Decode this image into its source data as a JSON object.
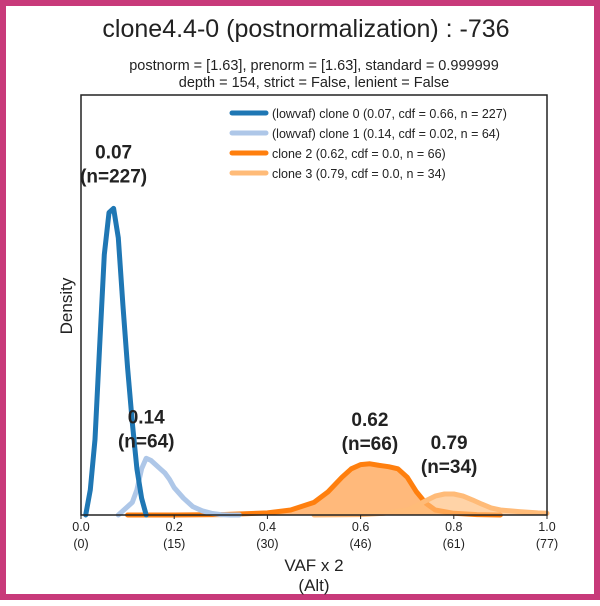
{
  "chart_data": {
    "type": "area",
    "title": "clone4.4-0 (postnormalization) : -736",
    "subtitle_line1": "postnorm = [1.63], prenorm = [1.63], standard = 0.999999",
    "subtitle_line2": "depth = 154, strict = False, lenient = False",
    "xlabel_line1": "VAF x 2",
    "xlabel_line2": "(Alt)",
    "ylabel": "Density",
    "xlim": [
      0.0,
      1.0
    ],
    "ylim": [
      0,
      1.0
    ],
    "x_ticks": [
      {
        "value": 0.0,
        "label": "0.0",
        "sublabel": "(0)"
      },
      {
        "value": 0.2,
        "label": "0.2",
        "sublabel": "(15)"
      },
      {
        "value": 0.4,
        "label": "0.4",
        "sublabel": "(30)"
      },
      {
        "value": 0.6,
        "label": "0.6",
        "sublabel": "(46)"
      },
      {
        "value": 0.8,
        "label": "0.8",
        "sublabel": "(61)"
      },
      {
        "value": 1.0,
        "label": "1.0",
        "sublabel": "(77)"
      }
    ],
    "grid": false,
    "legend_position": "top-right",
    "series": [
      {
        "name": "(lowvaf) clone 0 (0.07, cdf = 0.66, n = 227)",
        "color": "#1f77b4",
        "style": "line",
        "peak_label": "0.07",
        "peak_n": "(n=227)",
        "x": [
          0.01,
          0.02,
          0.03,
          0.04,
          0.05,
          0.06,
          0.07,
          0.08,
          0.09,
          0.1,
          0.11,
          0.12,
          0.13,
          0.14
        ],
        "y": [
          0.0,
          0.06,
          0.18,
          0.4,
          0.62,
          0.72,
          0.73,
          0.66,
          0.5,
          0.35,
          0.22,
          0.11,
          0.04,
          0.0
        ]
      },
      {
        "name": "(lowvaf) clone 1 (0.14, cdf = 0.02, n = 64)",
        "color": "#aec7e8",
        "style": "line",
        "peak_label": "0.14",
        "peak_n": "(n=64)",
        "x": [
          0.08,
          0.09,
          0.1,
          0.11,
          0.12,
          0.13,
          0.14,
          0.15,
          0.16,
          0.17,
          0.18,
          0.19,
          0.2,
          0.22,
          0.24,
          0.26,
          0.28,
          0.3,
          0.32,
          0.34
        ],
        "y": [
          0.0,
          0.01,
          0.02,
          0.03,
          0.06,
          0.11,
          0.135,
          0.13,
          0.12,
          0.11,
          0.1,
          0.085,
          0.065,
          0.04,
          0.02,
          0.01,
          0.004,
          0.001,
          0.0,
          0.0
        ]
      },
      {
        "name": "clone 2 (0.62, cdf = 0.0, n = 66)",
        "color": "#ff7f0e",
        "style": "area",
        "peak_label": "0.62",
        "peak_n": "(n=66)",
        "x": [
          0.1,
          0.2,
          0.3,
          0.4,
          0.45,
          0.5,
          0.53,
          0.56,
          0.58,
          0.6,
          0.62,
          0.64,
          0.66,
          0.68,
          0.7,
          0.72,
          0.74,
          0.76,
          0.8,
          0.85,
          0.9
        ],
        "y": [
          0.0,
          0.0,
          0.001,
          0.005,
          0.012,
          0.03,
          0.055,
          0.09,
          0.11,
          0.12,
          0.122,
          0.118,
          0.115,
          0.11,
          0.09,
          0.055,
          0.028,
          0.012,
          0.004,
          0.001,
          0.0
        ]
      },
      {
        "name": "clone 3 (0.79, cdf = 0.0, n = 34)",
        "color": "#ffbb78",
        "style": "area",
        "peak_label": "0.79",
        "peak_n": "(n=34)",
        "x": [
          0.5,
          0.6,
          0.65,
          0.7,
          0.72,
          0.74,
          0.76,
          0.78,
          0.8,
          0.82,
          0.84,
          0.86,
          0.88,
          0.9,
          0.94,
          0.98,
          1.0
        ],
        "y": [
          0.0,
          0.001,
          0.004,
          0.012,
          0.022,
          0.034,
          0.045,
          0.05,
          0.05,
          0.045,
          0.036,
          0.026,
          0.017,
          0.012,
          0.008,
          0.005,
          0.004
        ]
      }
    ]
  }
}
